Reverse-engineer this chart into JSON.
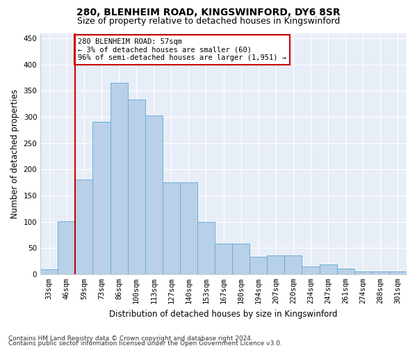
{
  "title1": "280, BLENHEIM ROAD, KINGSWINFORD, DY6 8SR",
  "title2": "Size of property relative to detached houses in Kingswinford",
  "xlabel": "Distribution of detached houses by size in Kingswinford",
  "ylabel": "Number of detached properties",
  "categories": [
    "33sqm",
    "46sqm",
    "59sqm",
    "73sqm",
    "86sqm",
    "100sqm",
    "113sqm",
    "127sqm",
    "140sqm",
    "153sqm",
    "167sqm",
    "180sqm",
    "194sqm",
    "207sqm",
    "220sqm",
    "234sqm",
    "247sqm",
    "261sqm",
    "274sqm",
    "288sqm",
    "301sqm"
  ],
  "values": [
    9,
    101,
    180,
    290,
    365,
    333,
    303,
    175,
    175,
    99,
    58,
    58,
    33,
    35,
    35,
    15,
    18,
    10,
    5,
    5,
    5
  ],
  "bar_color": "#b8d0e8",
  "bar_edge_color": "#6aaed6",
  "vline_color": "#cc0000",
  "annotation_text": "280 BLENHEIM ROAD: 57sqm\n← 3% of detached houses are smaller (60)\n96% of semi-detached houses are larger (1,951) →",
  "annotation_box_color": "white",
  "annotation_box_edge_color": "#cc0000",
  "ylim": [
    0,
    460
  ],
  "yticks": [
    0,
    50,
    100,
    150,
    200,
    250,
    300,
    350,
    400,
    450
  ],
  "footer1": "Contains HM Land Registry data © Crown copyright and database right 2024.",
  "footer2": "Contains public sector information licensed under the Open Government Licence v3.0.",
  "bg_color": "#e8eef8",
  "fig_bg_color": "#ffffff",
  "title1_fontsize": 10,
  "title2_fontsize": 9,
  "xlabel_fontsize": 8.5,
  "ylabel_fontsize": 8.5,
  "tick_fontsize": 7.5,
  "footer_fontsize": 6.5,
  "vline_bar_index": 2
}
